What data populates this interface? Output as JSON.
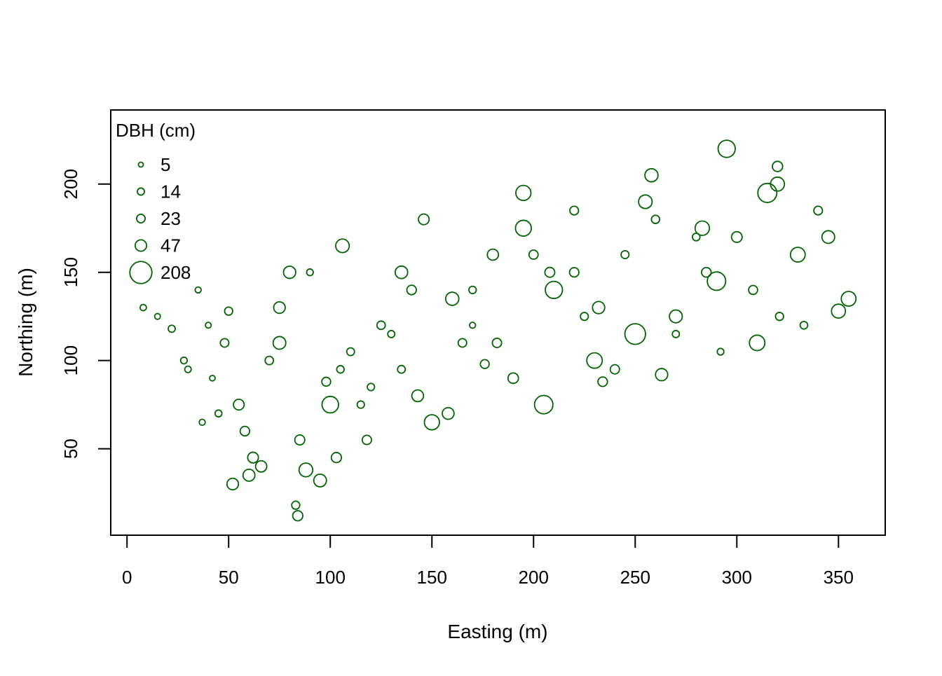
{
  "chart_data": {
    "type": "scatter",
    "title": "",
    "xlabel": "Easting (m)",
    "ylabel": "Northing (m)",
    "xlim": [
      -8,
      373
    ],
    "ylim": [
      1,
      242
    ],
    "x_ticks": [
      0,
      50,
      100,
      150,
      200,
      250,
      300,
      350
    ],
    "y_ticks": [
      50,
      100,
      150,
      200
    ],
    "grid": false,
    "point_color": "#006400",
    "marker": "open circle, size proportional to DBH",
    "size_variable": "DBH (cm)",
    "legend": {
      "title": "DBH (cm)",
      "position": "top-left",
      "entries": [
        5,
        14,
        23,
        47,
        208
      ]
    },
    "points": {
      "note": "approximate sampled trees (x easting m, y northing m, dbh cm)",
      "x": [
        8,
        15,
        22,
        28,
        35,
        42,
        50,
        58,
        66,
        75,
        84,
        90,
        98,
        106,
        115,
        125,
        135,
        146,
        158,
        170,
        182,
        195,
        208,
        220,
        232,
        245,
        258,
        270,
        283,
        295,
        308,
        320,
        333,
        345,
        355,
        30,
        55,
        80,
        110,
        140,
        170,
        200,
        230,
        260,
        290,
        320,
        45,
        75,
        105,
        135,
        165,
        195,
        225,
        255,
        285,
        315,
        340,
        60,
        85,
        120,
        150,
        180,
        210,
        240,
        270,
        300,
        330,
        40,
        70,
        100,
        130,
        160,
        190,
        220,
        250,
        280,
        310,
        83,
        88,
        52,
        95,
        103,
        62,
        37,
        48,
        118,
        143,
        176,
        205,
        234,
        263,
        292,
        321,
        350
      ],
      "y": [
        130,
        125,
        118,
        100,
        140,
        90,
        128,
        60,
        40,
        110,
        12,
        150,
        88,
        165,
        75,
        120,
        95,
        180,
        70,
        140,
        110,
        195,
        150,
        185,
        130,
        160,
        205,
        115,
        175,
        220,
        140,
        200,
        120,
        170,
        135,
        95,
        75,
        150,
        105,
        140,
        120,
        160,
        100,
        180,
        145,
        210,
        70,
        130,
        95,
        150,
        110,
        175,
        125,
        190,
        150,
        195,
        185,
        35,
        55,
        85,
        65,
        160,
        140,
        95,
        125,
        170,
        160,
        120,
        100,
        75,
        115,
        135,
        90,
        150,
        115,
        170,
        110,
        18,
        38,
        30,
        32,
        45,
        45,
        65,
        110,
        55,
        80,
        98,
        75,
        88,
        92,
        105,
        125,
        128
      ],
      "dbh": [
        10,
        8,
        14,
        12,
        9,
        7,
        20,
        30,
        45,
        60,
        35,
        12,
        25,
        70,
        15,
        22,
        18,
        40,
        50,
        16,
        28,
        90,
        33,
        24,
        55,
        19,
        65,
        14,
        80,
        120,
        26,
        75,
        17,
        60,
        85,
        11,
        40,
        55,
        18,
        30,
        9,
        27,
        95,
        21,
        140,
        36,
        13,
        48,
        16,
        58,
        23,
        100,
        19,
        70,
        31,
        150,
        24,
        52,
        34,
        15,
        90,
        44,
        120,
        28,
        62,
        40,
        85,
        8,
        22,
        110,
        14,
        66,
        38,
        29,
        180,
        17,
        95,
        20,
        72,
        48,
        60,
        35,
        40,
        9,
        23,
        28,
        50,
        25,
        140,
        30,
        55,
        12,
        20,
        75
      ]
    }
  }
}
